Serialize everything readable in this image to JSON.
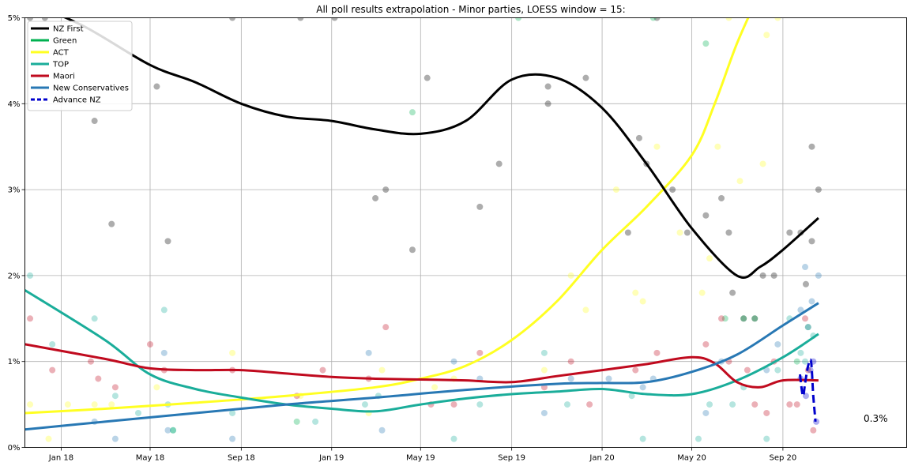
{
  "chart_data": {
    "type": "line",
    "title": "All poll results extrapolation - Minor parties, LOESS window = 15:",
    "xlabel": "",
    "ylabel": "",
    "x_range": [
      "2017-11-13",
      "2021-02-15"
    ],
    "ylim": [
      0,
      5
    ],
    "y_ticks": [
      0,
      1,
      2,
      3,
      4,
      5
    ],
    "y_tick_labels": [
      "0%",
      "1%",
      "2%",
      "3%",
      "4%",
      "5%"
    ],
    "x_ticks": [
      "2018-01-01",
      "2018-05-01",
      "2018-09-01",
      "2019-01-01",
      "2019-05-01",
      "2019-09-01",
      "2020-01-01",
      "2020-05-01",
      "2020-09-01"
    ],
    "x_tick_labels": [
      "Jan 18",
      "May 18",
      "Sep 18",
      "Jan 19",
      "May 19",
      "Sep 19",
      "Jan 20",
      "May 20",
      "Sep 20"
    ],
    "grid": true,
    "legend_position": "top-left",
    "end_label": "0.3%",
    "series": [
      {
        "name": "NZ First",
        "color": "#000000",
        "dash": "solid",
        "x": [
          "2017-11-13",
          "2018-02-01",
          "2018-05-01",
          "2018-07-01",
          "2018-09-01",
          "2018-11-01",
          "2019-01-01",
          "2019-03-01",
          "2019-05-01",
          "2019-07-01",
          "2019-09-01",
          "2019-11-01",
          "2020-01-01",
          "2020-03-01",
          "2020-05-01",
          "2020-07-01",
          "2020-08-01",
          "2020-09-01",
          "2020-10-19"
        ],
        "values": [
          5.2,
          4.9,
          4.45,
          4.25,
          4.0,
          3.85,
          3.8,
          3.7,
          3.65,
          3.8,
          4.28,
          4.3,
          3.95,
          3.3,
          2.55,
          2.0,
          2.1,
          2.3,
          2.67
        ]
      },
      {
        "name": "Green",
        "color": "#00b050",
        "dash": "solid",
        "x": [],
        "values": []
      },
      {
        "name": "ACT",
        "color": "#ffff22",
        "dash": "solid",
        "x": [
          "2017-11-13",
          "2018-03-01",
          "2018-07-01",
          "2018-11-01",
          "2019-03-01",
          "2019-05-01",
          "2019-07-01",
          "2019-09-01",
          "2019-11-01",
          "2020-01-01",
          "2020-03-01",
          "2020-05-01",
          "2020-06-01",
          "2020-07-01",
          "2020-08-01"
        ],
        "values": [
          0.4,
          0.45,
          0.52,
          0.6,
          0.7,
          0.8,
          0.95,
          1.25,
          1.7,
          2.3,
          2.8,
          3.4,
          4.0,
          4.7,
          5.3
        ]
      },
      {
        "name": "TOP",
        "color": "#1aad9a",
        "dash": "solid",
        "x": [
          "2017-11-13",
          "2018-03-01",
          "2018-05-01",
          "2018-07-01",
          "2018-09-01",
          "2018-11-01",
          "2019-01-01",
          "2019-03-01",
          "2019-05-01",
          "2019-07-01",
          "2019-09-01",
          "2019-11-01",
          "2020-01-01",
          "2020-03-01",
          "2020-05-01",
          "2020-07-01",
          "2020-09-01",
          "2020-10-19"
        ],
        "values": [
          1.83,
          1.25,
          0.85,
          0.68,
          0.58,
          0.5,
          0.45,
          0.42,
          0.5,
          0.57,
          0.62,
          0.65,
          0.68,
          0.62,
          0.62,
          0.78,
          1.05,
          1.32
        ]
      },
      {
        "name": "Maori",
        "color": "#c00a1e",
        "dash": "solid",
        "x": [
          "2017-11-13",
          "2018-03-01",
          "2018-05-01",
          "2018-07-01",
          "2018-09-01",
          "2018-11-01",
          "2019-01-01",
          "2019-03-01",
          "2019-05-01",
          "2019-07-01",
          "2019-09-01",
          "2019-11-01",
          "2020-01-01",
          "2020-03-01",
          "2020-05-01",
          "2020-06-01",
          "2020-07-01",
          "2020-08-01",
          "2020-09-01",
          "2020-10-19"
        ],
        "values": [
          1.2,
          1.03,
          0.92,
          0.9,
          0.9,
          0.86,
          0.82,
          0.8,
          0.79,
          0.78,
          0.76,
          0.83,
          0.9,
          0.97,
          1.05,
          0.98,
          0.76,
          0.7,
          0.78,
          0.78
        ]
      },
      {
        "name": "New Conservatives",
        "color": "#2878b4",
        "dash": "solid",
        "x": [
          "2017-11-13",
          "2018-03-01",
          "2018-07-01",
          "2018-11-01",
          "2019-03-01",
          "2019-07-01",
          "2019-11-01",
          "2020-01-01",
          "2020-03-01",
          "2020-05-01",
          "2020-07-01",
          "2020-09-01",
          "2020-10-19"
        ],
        "values": [
          0.21,
          0.3,
          0.4,
          0.5,
          0.58,
          0.67,
          0.74,
          0.75,
          0.76,
          0.88,
          1.08,
          1.42,
          1.68
        ]
      },
      {
        "name": "Advance NZ",
        "color": "#0000cc",
        "dash": "dashed",
        "x": [
          "2020-09-24",
          "2020-09-28",
          "2020-10-01",
          "2020-10-05",
          "2020-10-09",
          "2020-10-12",
          "2020-10-15"
        ],
        "values": [
          0.85,
          0.6,
          0.75,
          0.95,
          1.0,
          0.6,
          0.3
        ]
      }
    ],
    "points": [
      {
        "series": "NZ First",
        "color": "#000000",
        "x": [
          "2017-11-20",
          "2017-12-10",
          "2018-02-15",
          "2018-03-10",
          "2018-05-10",
          "2018-05-25",
          "2018-08-20",
          "2018-11-20",
          "2019-01-05",
          "2019-03-01",
          "2019-03-15",
          "2019-05-10",
          "2019-04-20",
          "2019-07-20",
          "2019-08-15",
          "2019-10-20",
          "2019-10-20",
          "2019-12-10",
          "2020-02-05",
          "2020-02-20",
          "2020-03-01",
          "2020-03-15",
          "2020-04-05",
          "2020-04-25",
          "2020-05-20",
          "2020-06-10",
          "2020-06-20",
          "2020-06-25",
          "2020-07-10",
          "2020-07-25",
          "2020-08-05",
          "2020-08-20",
          "2020-09-10",
          "2020-09-25",
          "2020-10-02",
          "2020-10-10",
          "2020-10-19",
          "2020-10-10"
        ],
        "values": [
          5.0,
          5.0,
          3.8,
          2.6,
          4.2,
          2.4,
          5.0,
          5.0,
          5.0,
          2.9,
          3.0,
          4.3,
          2.3,
          2.8,
          3.3,
          4.2,
          4.0,
          4.3,
          2.5,
          3.6,
          3.3,
          5.0,
          3.0,
          2.5,
          2.7,
          2.9,
          2.5,
          1.8,
          1.5,
          1.5,
          2.0,
          2.0,
          2.5,
          2.5,
          1.9,
          2.4,
          3.0,
          3.5
        ]
      },
      {
        "series": "Green",
        "color": "#00b050",
        "x": [
          "2018-06-01",
          "2018-11-15",
          "2019-04-20",
          "2019-09-10",
          "2020-03-10",
          "2020-05-20",
          "2020-06-15",
          "2020-07-10",
          "2020-07-25",
          "2020-09-20",
          "2020-10-05"
        ],
        "values": [
          0.2,
          0.3,
          3.9,
          5.0,
          5.0,
          4.7,
          1.5,
          1.5,
          1.5,
          1.0,
          1.4
        ]
      },
      {
        "series": "ACT",
        "color": "#ffff22",
        "x": [
          "2017-11-20",
          "2017-12-15",
          "2018-01-10",
          "2018-02-15",
          "2018-03-10",
          "2018-05-10",
          "2018-08-20",
          "2018-11-20",
          "2019-02-20",
          "2019-03-10",
          "2019-05-20",
          "2019-06-15",
          "2019-10-15",
          "2019-11-20",
          "2019-12-10",
          "2020-01-20",
          "2020-02-15",
          "2020-02-25",
          "2020-03-15",
          "2020-04-15",
          "2020-05-15",
          "2020-05-25",
          "2020-06-05",
          "2020-06-20",
          "2020-07-05",
          "2020-08-05",
          "2020-08-10",
          "2020-08-25"
        ],
        "values": [
          0.5,
          0.1,
          0.5,
          0.5,
          0.5,
          0.7,
          1.1,
          0.6,
          0.4,
          0.9,
          0.7,
          0.8,
          0.9,
          2.0,
          1.6,
          3.0,
          1.8,
          1.7,
          3.5,
          2.5,
          1.8,
          2.2,
          3.5,
          5.0,
          3.1,
          3.3,
          4.8,
          5.0
        ]
      },
      {
        "series": "TOP",
        "color": "#1aad9a",
        "x": [
          "2017-11-20",
          "2017-12-20",
          "2018-02-15",
          "2018-03-15",
          "2018-04-15",
          "2018-05-20",
          "2018-05-25",
          "2018-06-01",
          "2018-08-20",
          "2018-12-10",
          "2019-02-15",
          "2019-03-05",
          "2019-06-15",
          "2019-07-20",
          "2019-10-15",
          "2019-11-15",
          "2020-02-10",
          "2020-02-25",
          "2020-05-10",
          "2020-05-25",
          "2020-06-25",
          "2020-07-10",
          "2020-08-10",
          "2020-08-25",
          "2020-09-10",
          "2020-09-25",
          "2020-10-01",
          "2020-10-12"
        ],
        "values": [
          2.0,
          1.2,
          1.5,
          0.6,
          0.4,
          1.6,
          0.5,
          0.2,
          0.4,
          0.3,
          0.5,
          0.6,
          0.1,
          0.5,
          1.1,
          0.5,
          0.6,
          0.1,
          0.1,
          0.5,
          0.5,
          0.7,
          0.1,
          0.9,
          1.5,
          1.1,
          1.0,
          1.3
        ]
      },
      {
        "series": "Maori",
        "color": "#c00a1e",
        "x": [
          "2017-11-20",
          "2017-12-20",
          "2018-02-10",
          "2018-02-20",
          "2018-03-15",
          "2018-05-01",
          "2018-05-20",
          "2018-08-20",
          "2018-11-15",
          "2018-12-20",
          "2019-02-20",
          "2019-03-15",
          "2019-05-15",
          "2019-06-15",
          "2019-07-20",
          "2019-10-15",
          "2019-11-20",
          "2019-12-15",
          "2020-02-15",
          "2020-03-15",
          "2020-05-20",
          "2020-06-10",
          "2020-06-20",
          "2020-07-15",
          "2020-07-25",
          "2020-08-10",
          "2020-08-20",
          "2020-09-10",
          "2020-09-20",
          "2020-10-01",
          "2020-10-05",
          "2020-10-12"
        ],
        "values": [
          1.5,
          0.9,
          1.0,
          0.8,
          0.7,
          1.2,
          0.9,
          0.9,
          0.6,
          0.9,
          0.8,
          1.4,
          0.5,
          0.5,
          1.1,
          0.7,
          1.0,
          0.5,
          0.9,
          1.1,
          1.2,
          1.5,
          1.0,
          0.9,
          0.5,
          0.4,
          1.0,
          0.5,
          0.5,
          1.5,
          0.9,
          0.2
        ]
      },
      {
        "series": "New Conservatives",
        "color": "#2878b4",
        "x": [
          "2018-02-15",
          "2018-03-15",
          "2018-05-20",
          "2018-05-25",
          "2018-08-20",
          "2019-02-20",
          "2019-03-10",
          "2019-06-15",
          "2019-07-20",
          "2019-10-15",
          "2019-11-20",
          "2020-01-10",
          "2020-02-25",
          "2020-03-10",
          "2020-05-20",
          "2020-06-10",
          "2020-08-10",
          "2020-08-25",
          "2020-09-25",
          "2020-10-01",
          "2020-10-05",
          "2020-10-10",
          "2020-10-19"
        ],
        "values": [
          0.3,
          0.1,
          1.1,
          0.2,
          0.1,
          1.1,
          0.2,
          1.0,
          0.8,
          0.4,
          0.8,
          0.8,
          0.7,
          0.8,
          0.4,
          1.0,
          0.9,
          1.2,
          1.6,
          2.1,
          1.4,
          1.7,
          2.0
        ]
      },
      {
        "series": "Advance NZ",
        "color": "#0000cc",
        "x": [
          "2020-09-25",
          "2020-10-02",
          "2020-10-08",
          "2020-10-12",
          "2020-10-16"
        ],
        "values": [
          0.8,
          0.6,
          0.9,
          1.0,
          0.3
        ]
      }
    ]
  }
}
